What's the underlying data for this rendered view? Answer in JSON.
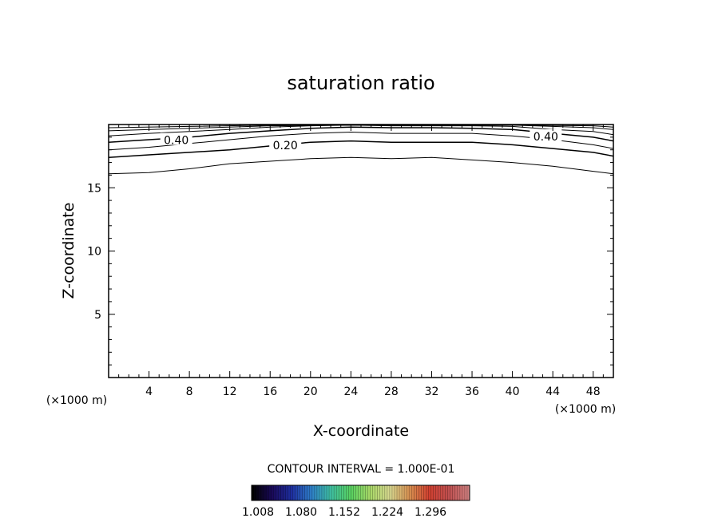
{
  "chart_data": {
    "type": "contour",
    "title": "saturation ratio",
    "xlabel": "X-coordinate",
    "ylabel": "Z-coordinate",
    "x_unit": "(×1000 m)",
    "z_unit": "(×1000 m)",
    "xlim": [
      0,
      50
    ],
    "ylim": [
      0,
      20
    ],
    "x_ticks": [
      4,
      8,
      12,
      16,
      20,
      24,
      28,
      32,
      36,
      40,
      44,
      48
    ],
    "y_ticks": [
      5,
      10,
      15
    ],
    "contour_interval_text": "CONTOUR INTERVAL = 1.000E-01",
    "contours": [
      {
        "level": 0.1,
        "x": [
          0,
          4,
          8,
          12,
          16,
          20,
          24,
          28,
          32,
          36,
          40,
          44,
          48,
          50
        ],
        "z": [
          16.1,
          16.2,
          16.5,
          16.9,
          17.1,
          17.3,
          17.4,
          17.3,
          17.4,
          17.2,
          17.0,
          16.7,
          16.3,
          16.1
        ]
      },
      {
        "level": 0.2,
        "x": [
          0,
          4,
          8,
          12,
          16,
          20,
          24,
          28,
          32,
          36,
          40,
          44,
          48,
          50
        ],
        "z": [
          17.4,
          17.6,
          17.8,
          18.0,
          18.3,
          18.6,
          18.7,
          18.6,
          18.6,
          18.6,
          18.4,
          18.1,
          17.8,
          17.5
        ]
      },
      {
        "level": 0.3,
        "x": [
          0,
          4,
          8,
          12,
          16,
          20,
          24,
          28,
          32,
          36,
          40,
          44,
          48,
          50
        ],
        "z": [
          18.0,
          18.2,
          18.5,
          18.8,
          19.1,
          19.3,
          19.4,
          19.3,
          19.3,
          19.3,
          19.1,
          18.8,
          18.4,
          18.1
        ]
      },
      {
        "level": 0.4,
        "x": [
          0,
          4,
          8,
          12,
          16,
          20,
          24,
          28,
          32,
          36,
          40,
          44,
          48,
          50
        ],
        "z": [
          18.6,
          18.8,
          19.0,
          19.3,
          19.5,
          19.7,
          19.8,
          19.75,
          19.75,
          19.7,
          19.6,
          19.3,
          19.0,
          18.7
        ]
      },
      {
        "level": 0.5,
        "x": [
          0,
          4,
          8,
          12,
          16,
          20,
          24,
          28,
          32,
          36,
          40,
          44,
          48,
          50
        ],
        "z": [
          19.1,
          19.3,
          19.45,
          19.6,
          19.8,
          19.9,
          19.95,
          19.9,
          19.9,
          19.9,
          19.85,
          19.6,
          19.45,
          19.2
        ]
      },
      {
        "level": 0.6,
        "x": [
          0,
          8,
          16,
          24,
          32,
          40,
          48,
          50
        ],
        "z": [
          19.5,
          19.7,
          19.9,
          20.0,
          20.0,
          19.95,
          19.75,
          19.6
        ]
      },
      {
        "level": 0.7,
        "x": [
          0,
          8,
          16,
          24,
          32,
          40,
          48,
          50
        ],
        "z": [
          19.75,
          19.85,
          19.95,
          20.0,
          20.0,
          20.0,
          19.9,
          19.8
        ]
      }
    ],
    "contour_labels": [
      {
        "text": "0.40",
        "x": 6.7,
        "z": 18.7
      },
      {
        "text": "0.20",
        "x": 17.5,
        "z": 18.3
      },
      {
        "text": "0.40",
        "x": 43.3,
        "z": 19.0
      }
    ],
    "colorbar": {
      "tick_labels": [
        "1.008",
        "1.080",
        "1.152",
        "1.224",
        "1.296"
      ],
      "colors": [
        "#000000",
        "#1a0a5a",
        "#1e2fa0",
        "#2f7fc8",
        "#3fc0a0",
        "#58d060",
        "#a8d868",
        "#d8d890",
        "#d89050",
        "#d04030",
        "#c05050",
        "#d08080"
      ]
    }
  }
}
